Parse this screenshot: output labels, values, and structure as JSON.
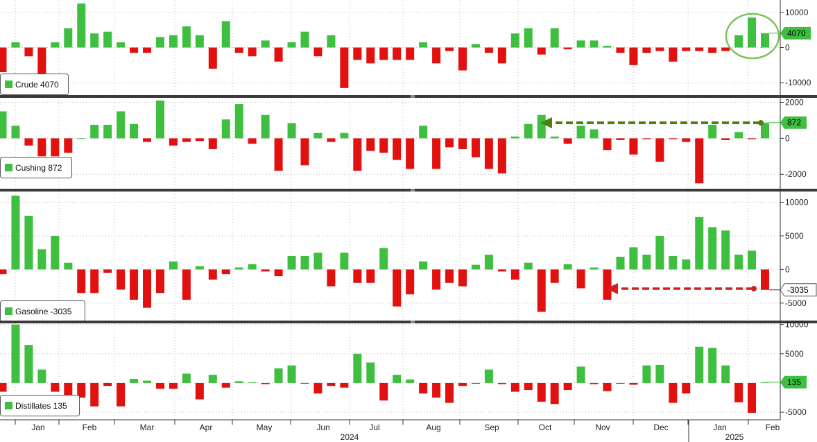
{
  "colors": {
    "positive": "#3fbf3f",
    "negative": "#e0110f",
    "tag_green": "#3fbf3f",
    "tag_white": "#ffffff",
    "cushing_arrow": "#4f7f0f",
    "gasoline_arrow": "#d21f1f",
    "circle": "#7ac35a"
  },
  "chart_data": [
    {
      "type": "bar",
      "series": [
        {
          "name": "Crude",
          "legend": "Crude 4070",
          "last_value": 4070,
          "last_label": "4070",
          "values": [
            -7000,
            1500,
            -2500,
            -8000,
            1500,
            5500,
            12500,
            4000,
            4500,
            1500,
            -1500,
            -1500,
            3000,
            3500,
            6000,
            3500,
            -6000,
            7500,
            -1500,
            -2500,
            2000,
            -4000,
            1500,
            4500,
            -2500,
            3500,
            -11500,
            -3500,
            -4500,
            -3500,
            -3500,
            -3500,
            1500,
            -4500,
            -1000,
            -6500,
            1000,
            -1500,
            -4500,
            4000,
            5500,
            -2000,
            5500,
            -500,
            2000,
            2000,
            500,
            -1500,
            -5000,
            -1500,
            -1000,
            -4000,
            -1000,
            -1000,
            -1500,
            -1000,
            3500,
            8500,
            4070
          ]
        }
      ],
      "y_ticks": [
        10000,
        0,
        -10000
      ],
      "ylim": [
        -13500,
        13500
      ]
    },
    {
      "type": "bar",
      "series": [
        {
          "name": "Cushing",
          "legend": "Cushing 872",
          "last_value": 872,
          "last_label": "872",
          "values": [
            1500,
            700,
            -400,
            -1000,
            -1000,
            -800,
            0,
            750,
            750,
            1500,
            800,
            -200,
            2100,
            -400,
            -200,
            -150,
            -600,
            1050,
            1900,
            -300,
            1300,
            -1800,
            850,
            -1500,
            300,
            -200,
            300,
            -1800,
            -700,
            -800,
            -1200,
            -1700,
            700,
            -1700,
            -500,
            -600,
            -1050,
            -1700,
            -1950,
            100,
            800,
            1300,
            100,
            -300,
            700,
            500,
            -650,
            -100,
            -900,
            -50,
            -1300,
            -50,
            -200,
            -2500,
            750,
            -100,
            350,
            -50,
            872
          ]
        }
      ],
      "y_ticks": [
        2000,
        0,
        -2000
      ],
      "ylim": [
        -2800,
        2250
      ]
    },
    {
      "type": "bar",
      "series": [
        {
          "name": "Gasoline",
          "legend": "Gasoline -3035",
          "last_value": -3035,
          "last_label": "-3035",
          "values": [
            -700,
            11000,
            8000,
            3000,
            5000,
            1000,
            -3500,
            -3500,
            -500,
            -3000,
            -4500,
            -5700,
            -3500,
            1200,
            -4500,
            500,
            -1500,
            -700,
            300,
            800,
            -300,
            -1000,
            2000,
            2000,
            2500,
            -2500,
            2500,
            -2000,
            -2000,
            3200,
            -5500,
            -3700,
            1200,
            -3000,
            -2000,
            -2500,
            700,
            2200,
            -300,
            -1500,
            1000,
            -6300,
            -2000,
            800,
            -2800,
            300,
            -4500,
            1900,
            3300,
            2200,
            5000,
            2000,
            1500,
            7800,
            6300,
            5800,
            2200,
            2800,
            -3035
          ]
        }
      ],
      "y_ticks": [
        10000,
        5000,
        0,
        -5000
      ],
      "ylim": [
        -7600,
        11600
      ]
    },
    {
      "type": "bar",
      "series": [
        {
          "name": "Distillates",
          "legend": "Distillates 135",
          "last_value": 135,
          "last_label": "135",
          "values": [
            -1500,
            10000,
            6500,
            2300,
            -1500,
            -2500,
            -2500,
            -4000,
            -500,
            -4000,
            700,
            400,
            -1000,
            -1000,
            1600,
            -2800,
            1400,
            -800,
            300,
            100,
            -200,
            2500,
            3000,
            -100,
            -1800,
            -500,
            -800,
            5000,
            3500,
            -3000,
            1400,
            600,
            -1800,
            -2500,
            -3400,
            -500,
            -100,
            2300,
            -200,
            -1500,
            -1200,
            -3200,
            -3600,
            -1200,
            2800,
            -200,
            -1400,
            -100,
            -300,
            3000,
            3100,
            -3400,
            -1800,
            6200,
            6000,
            3000,
            -3300,
            -5100,
            135
          ]
        }
      ],
      "y_ticks": [
        10000,
        5000,
        0,
        -5000
      ],
      "ylim": [
        -6300,
        10200
      ]
    }
  ],
  "x_axis": {
    "months": [
      "Jan",
      "Feb",
      "Mar",
      "Apr",
      "May",
      "Jun",
      "Jul",
      "Aug",
      "Sep",
      "Oct",
      "Nov",
      "Dec",
      "Jan",
      "Feb"
    ],
    "years": [
      "2024",
      "2025"
    ]
  }
}
